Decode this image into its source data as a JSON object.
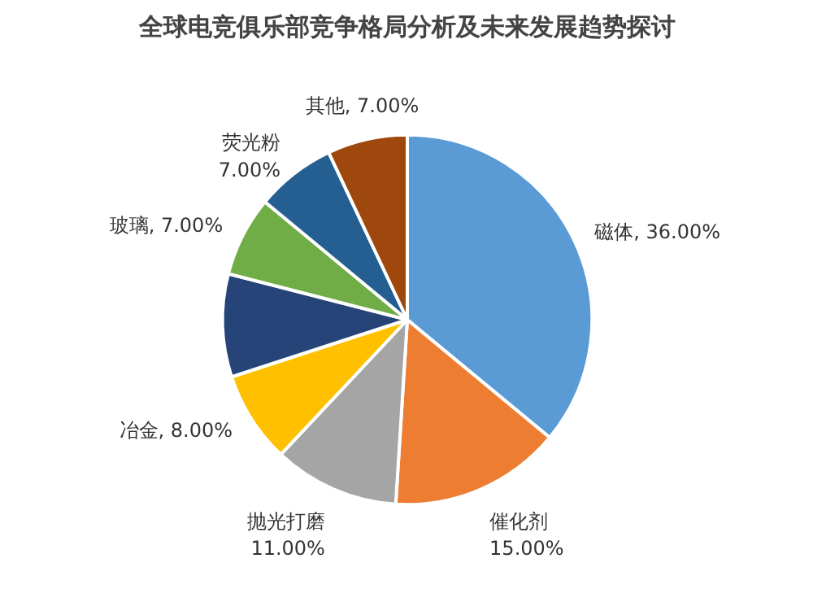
{
  "chart_data": {
    "type": "pie",
    "title": "全球电竞俱乐部竞争格局分析及未来发展趋势探讨",
    "categories": [
      "磁体",
      "催化剂",
      "抛光打磨",
      "冶金",
      null,
      "玻璃",
      "荧光粉",
      "其他"
    ],
    "values": [
      36,
      15,
      11,
      8,
      9,
      7,
      7,
      7
    ],
    "value_labels": [
      "36.00%",
      "15.00%",
      "11.00%",
      "8.00%",
      null,
      "7.00%",
      "7.00%",
      "7.00%"
    ],
    "colors": [
      "#5b9bd5",
      "#ed7d31",
      "#a5a5a5",
      "#ffc000",
      "#264478",
      "#70ad47",
      "#255e91",
      "#9e480e"
    ]
  }
}
